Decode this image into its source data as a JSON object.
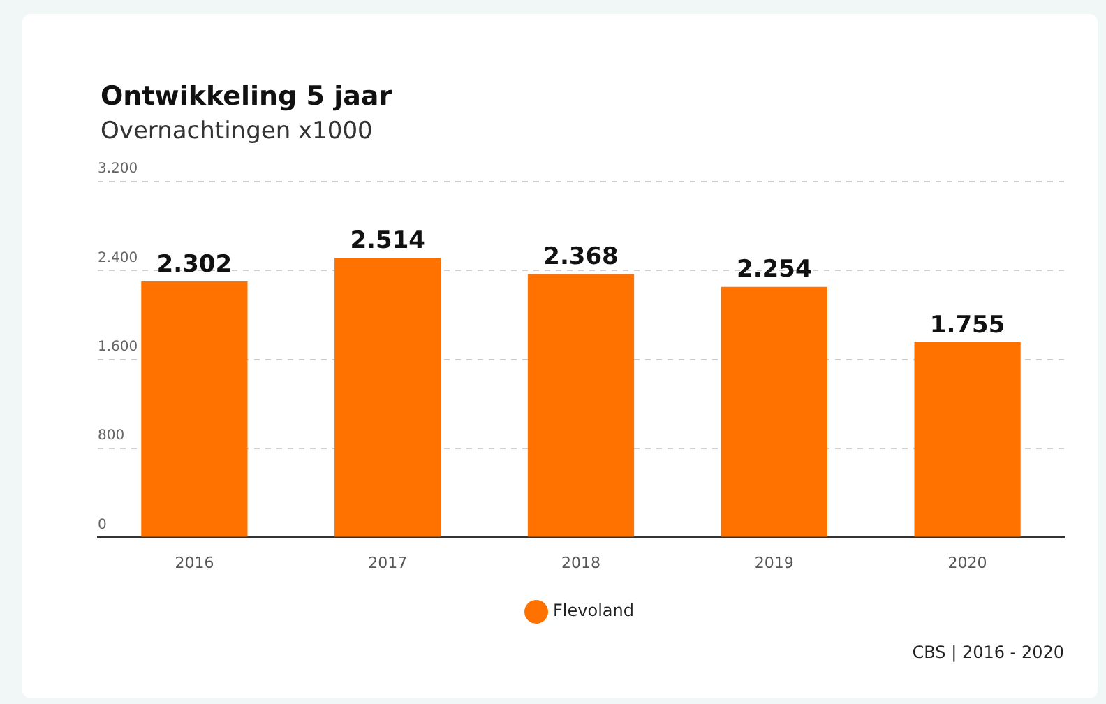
{
  "chart_data": {
    "type": "bar",
    "title": "Ontwikkeling 5 jaar",
    "subtitle": "Overnachtingen x1000",
    "categories": [
      "2016",
      "2017",
      "2018",
      "2019",
      "2020"
    ],
    "series": [
      {
        "name": "Flevoland",
        "color": "#ff7200",
        "values": [
          2302,
          2514,
          2368,
          2254,
          1755
        ],
        "value_labels": [
          "2.302",
          "2.514",
          "2.368",
          "2.254",
          "1.755"
        ]
      }
    ],
    "ylim": [
      0,
      3200
    ],
    "yticks": [
      {
        "value": 0,
        "label": "0"
      },
      {
        "value": 800,
        "label": "800"
      },
      {
        "value": 1600,
        "label": "1.600"
      },
      {
        "value": 2400,
        "label": "2.400"
      },
      {
        "value": 3200,
        "label": "3.200"
      }
    ],
    "grid": "y",
    "legend": "bottom",
    "annotations": [
      "CBS | 2016 - 2020"
    ]
  }
}
